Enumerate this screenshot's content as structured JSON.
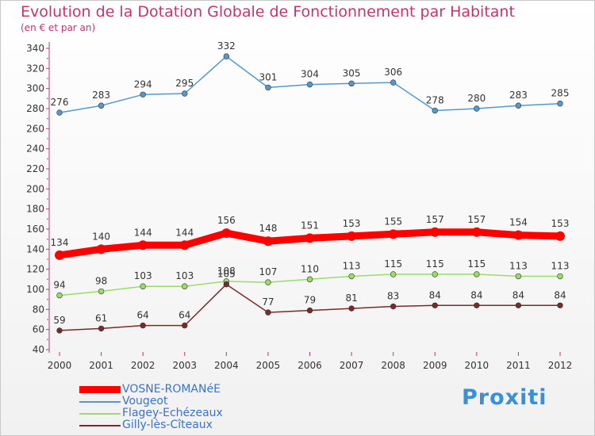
{
  "title": "Evolution de la Dotation Globale de Fonctionnement par Habitant",
  "subtitle": "(en € et par an)",
  "logo_text": "Proxiti",
  "colors": {
    "title": "#c8336e",
    "axis": "#c8336e",
    "tick_text": "#333333",
    "legend_text": "#3a73c7"
  },
  "chart_data": {
    "type": "line",
    "title": "Evolution de la Dotation Globale de Fonctionnement par Habitant",
    "subtitle": "(en € et par an)",
    "xlabel": "",
    "ylabel": "",
    "x": [
      2000,
      2001,
      2002,
      2003,
      2004,
      2005,
      2006,
      2007,
      2008,
      2009,
      2010,
      2011,
      2012
    ],
    "ylim": [
      40,
      340
    ],
    "yticks": [
      40,
      60,
      80,
      100,
      120,
      140,
      160,
      180,
      200,
      220,
      240,
      260,
      280,
      300,
      320,
      340
    ],
    "grid": false,
    "legend_position": "bottom-left",
    "series": [
      {
        "name": "VOSNE-ROMANéE",
        "color": "#ff0000",
        "style": "thick",
        "values": [
          134,
          140,
          144,
          144,
          156,
          148,
          151,
          153,
          155,
          157,
          157,
          154,
          153
        ],
        "labels": [
          "134",
          "140",
          "144",
          "144",
          "156",
          "148",
          "151",
          "153",
          "155",
          "157",
          "157",
          "154",
          "153"
        ]
      },
      {
        "name": "Vougeot",
        "color": "#5599cc",
        "style": "thin",
        "values": [
          276,
          283,
          294,
          295,
          332,
          301,
          304,
          305,
          306,
          278,
          280,
          283,
          285
        ],
        "labels": [
          "276",
          "283",
          "294",
          "295",
          "332",
          "301",
          "304",
          "305",
          "306",
          "278",
          "280",
          "283",
          "285"
        ]
      },
      {
        "name": "Flagey-Echézeaux",
        "color": "#99dd66",
        "style": "thin",
        "values": [
          94,
          98,
          103,
          103,
          108,
          107,
          110,
          113,
          115,
          115,
          115,
          113,
          113
        ],
        "labels": [
          "94",
          "98",
          "103",
          "103",
          "108",
          "107",
          "110",
          "113",
          "115",
          "115",
          "115",
          "113",
          "113"
        ]
      },
      {
        "name": "Gilly-lès-Cîteaux",
        "color": "#7a2a2a",
        "style": "thin",
        "values": [
          59,
          61,
          64,
          64,
          105,
          77,
          79,
          81,
          83,
          84,
          84,
          84,
          84
        ],
        "labels": [
          "59",
          "61",
          "64",
          "64",
          "105",
          "77",
          "79",
          "81",
          "83",
          "84",
          "84",
          "84",
          "84"
        ]
      }
    ]
  }
}
